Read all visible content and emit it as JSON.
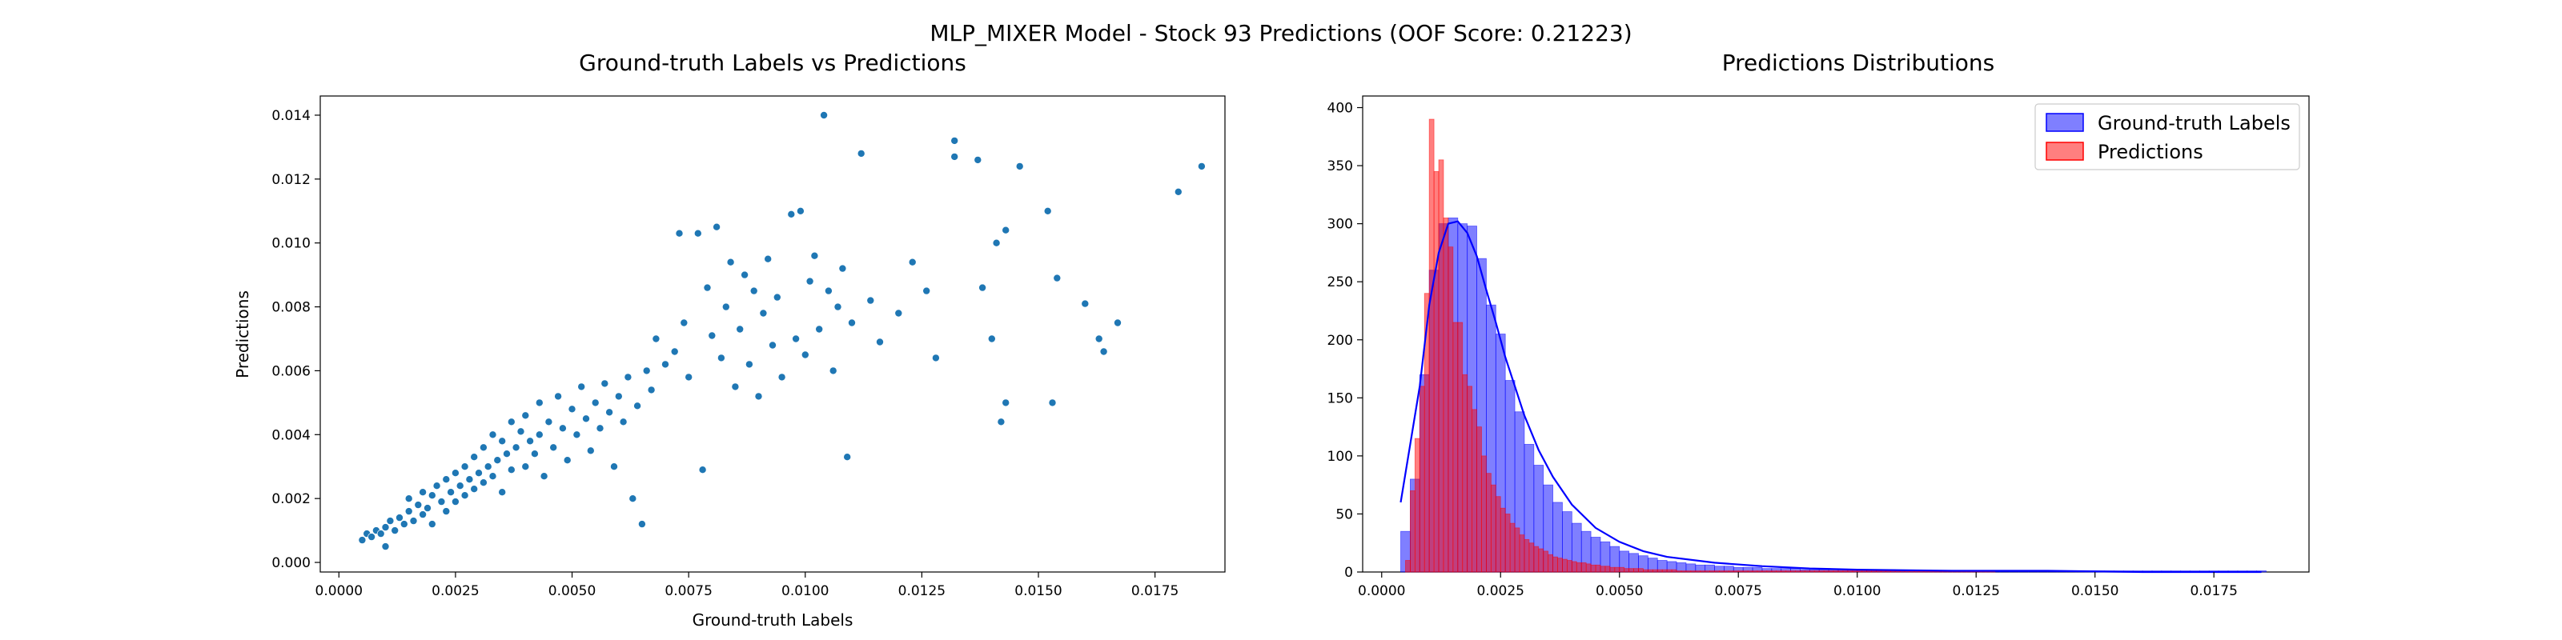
{
  "figure": {
    "suptitle": "MLP_MIXER Model - Stock 93 Predictions (OOF Score: 0.21223)"
  },
  "chart_data": [
    {
      "type": "scatter",
      "title": "Ground-truth Labels vs Predictions",
      "xlabel": "Ground-truth Labels",
      "ylabel": "Predictions",
      "xlim": [
        -0.0004,
        0.019
      ],
      "ylim": [
        -0.0003,
        0.0146
      ],
      "xticks": [
        0.0,
        0.0025,
        0.005,
        0.0075,
        0.01,
        0.0125,
        0.015,
        0.0175
      ],
      "xtick_labels": [
        "0.0000",
        "0.0025",
        "0.0050",
        "0.0075",
        "0.0100",
        "0.0125",
        "0.0150",
        "0.0175"
      ],
      "yticks": [
        0.0,
        0.002,
        0.004,
        0.006,
        0.008,
        0.01,
        0.012,
        0.014
      ],
      "ytick_labels": [
        "0.000",
        "0.002",
        "0.004",
        "0.006",
        "0.008",
        "0.010",
        "0.012",
        "0.014"
      ],
      "color": "#1f77b4",
      "grid": false,
      "points": [
        [
          0.0005,
          0.0007
        ],
        [
          0.0006,
          0.0009
        ],
        [
          0.0007,
          0.0008
        ],
        [
          0.0008,
          0.001
        ],
        [
          0.0009,
          0.0009
        ],
        [
          0.001,
          0.0011
        ],
        [
          0.001,
          0.0005
        ],
        [
          0.0011,
          0.0013
        ],
        [
          0.0012,
          0.001
        ],
        [
          0.0013,
          0.0014
        ],
        [
          0.0014,
          0.0012
        ],
        [
          0.0015,
          0.0016
        ],
        [
          0.0015,
          0.002
        ],
        [
          0.0016,
          0.0013
        ],
        [
          0.0017,
          0.0018
        ],
        [
          0.0018,
          0.0015
        ],
        [
          0.0018,
          0.0022
        ],
        [
          0.0019,
          0.0017
        ],
        [
          0.002,
          0.0021
        ],
        [
          0.002,
          0.0012
        ],
        [
          0.0021,
          0.0024
        ],
        [
          0.0022,
          0.0019
        ],
        [
          0.0023,
          0.0026
        ],
        [
          0.0023,
          0.0016
        ],
        [
          0.0024,
          0.0022
        ],
        [
          0.0025,
          0.0028
        ],
        [
          0.0025,
          0.0019
        ],
        [
          0.0026,
          0.0024
        ],
        [
          0.0027,
          0.003
        ],
        [
          0.0027,
          0.0021
        ],
        [
          0.0028,
          0.0026
        ],
        [
          0.0029,
          0.0033
        ],
        [
          0.0029,
          0.0023
        ],
        [
          0.003,
          0.0028
        ],
        [
          0.0031,
          0.0036
        ],
        [
          0.0031,
          0.0025
        ],
        [
          0.0032,
          0.003
        ],
        [
          0.0033,
          0.004
        ],
        [
          0.0033,
          0.0027
        ],
        [
          0.0034,
          0.0032
        ],
        [
          0.0035,
          0.0038
        ],
        [
          0.0035,
          0.0022
        ],
        [
          0.0036,
          0.0034
        ],
        [
          0.0037,
          0.0044
        ],
        [
          0.0037,
          0.0029
        ],
        [
          0.0038,
          0.0036
        ],
        [
          0.0039,
          0.0041
        ],
        [
          0.004,
          0.003
        ],
        [
          0.004,
          0.0046
        ],
        [
          0.0041,
          0.0038
        ],
        [
          0.0042,
          0.0034
        ],
        [
          0.0043,
          0.005
        ],
        [
          0.0043,
          0.004
        ],
        [
          0.0044,
          0.0027
        ],
        [
          0.0045,
          0.0044
        ],
        [
          0.0046,
          0.0036
        ],
        [
          0.0047,
          0.0052
        ],
        [
          0.0048,
          0.0042
        ],
        [
          0.0049,
          0.0032
        ],
        [
          0.005,
          0.0048
        ],
        [
          0.0051,
          0.004
        ],
        [
          0.0052,
          0.0055
        ],
        [
          0.0053,
          0.0045
        ],
        [
          0.0054,
          0.0035
        ],
        [
          0.0055,
          0.005
        ],
        [
          0.0056,
          0.0042
        ],
        [
          0.0057,
          0.0056
        ],
        [
          0.0058,
          0.0047
        ],
        [
          0.0059,
          0.003
        ],
        [
          0.006,
          0.0052
        ],
        [
          0.0061,
          0.0044
        ],
        [
          0.0062,
          0.0058
        ],
        [
          0.0063,
          0.002
        ],
        [
          0.0064,
          0.0049
        ],
        [
          0.0065,
          0.0012
        ],
        [
          0.0066,
          0.006
        ],
        [
          0.0067,
          0.0054
        ],
        [
          0.0068,
          0.007
        ],
        [
          0.007,
          0.0062
        ],
        [
          0.0072,
          0.0066
        ],
        [
          0.0073,
          0.0103
        ],
        [
          0.0074,
          0.0075
        ],
        [
          0.0075,
          0.0058
        ],
        [
          0.0077,
          0.0103
        ],
        [
          0.0078,
          0.0029
        ],
        [
          0.0079,
          0.0086
        ],
        [
          0.008,
          0.0071
        ],
        [
          0.0081,
          0.0105
        ],
        [
          0.0082,
          0.0064
        ],
        [
          0.0083,
          0.008
        ],
        [
          0.0084,
          0.0094
        ],
        [
          0.0085,
          0.0055
        ],
        [
          0.0086,
          0.0073
        ],
        [
          0.0087,
          0.009
        ],
        [
          0.0088,
          0.0062
        ],
        [
          0.0089,
          0.0085
        ],
        [
          0.009,
          0.0052
        ],
        [
          0.0091,
          0.0078
        ],
        [
          0.0092,
          0.0095
        ],
        [
          0.0093,
          0.0068
        ],
        [
          0.0094,
          0.0083
        ],
        [
          0.0095,
          0.0058
        ],
        [
          0.0097,
          0.0109
        ],
        [
          0.0098,
          0.007
        ],
        [
          0.0099,
          0.011
        ],
        [
          0.01,
          0.0065
        ],
        [
          0.0101,
          0.0088
        ],
        [
          0.0102,
          0.0096
        ],
        [
          0.0103,
          0.0073
        ],
        [
          0.0104,
          0.014
        ],
        [
          0.0105,
          0.0085
        ],
        [
          0.0106,
          0.006
        ],
        [
          0.0107,
          0.008
        ],
        [
          0.0108,
          0.0092
        ],
        [
          0.0109,
          0.0033
        ],
        [
          0.011,
          0.0075
        ],
        [
          0.0112,
          0.0128
        ],
        [
          0.0114,
          0.0082
        ],
        [
          0.0116,
          0.0069
        ],
        [
          0.012,
          0.0078
        ],
        [
          0.0123,
          0.0094
        ],
        [
          0.0126,
          0.0085
        ],
        [
          0.0128,
          0.0064
        ],
        [
          0.0132,
          0.0127
        ],
        [
          0.0132,
          0.0132
        ],
        [
          0.0137,
          0.0126
        ],
        [
          0.0138,
          0.0086
        ],
        [
          0.014,
          0.007
        ],
        [
          0.0141,
          0.01
        ],
        [
          0.0142,
          0.0044
        ],
        [
          0.0143,
          0.005
        ],
        [
          0.0143,
          0.0104
        ],
        [
          0.0146,
          0.0124
        ],
        [
          0.0152,
          0.011
        ],
        [
          0.0153,
          0.005
        ],
        [
          0.0154,
          0.0089
        ],
        [
          0.016,
          0.0081
        ],
        [
          0.0163,
          0.007
        ],
        [
          0.0164,
          0.0066
        ],
        [
          0.0167,
          0.0075
        ],
        [
          0.018,
          0.0116
        ],
        [
          0.0185,
          0.0124
        ]
      ]
    },
    {
      "type": "histogram",
      "title": "Predictions Distributions",
      "xlim": [
        -0.0004,
        0.0195
      ],
      "ylim": [
        0,
        410
      ],
      "xticks": [
        0.0,
        0.0025,
        0.005,
        0.0075,
        0.01,
        0.0125,
        0.015,
        0.0175
      ],
      "xtick_labels": [
        "0.0000",
        "0.0025",
        "0.0050",
        "0.0075",
        "0.0100",
        "0.0125",
        "0.0150",
        "0.0175"
      ],
      "yticks": [
        0,
        50,
        100,
        150,
        200,
        250,
        300,
        350,
        400
      ],
      "ytick_labels": [
        "0",
        "50",
        "100",
        "150",
        "200",
        "250",
        "300",
        "350",
        "400"
      ],
      "legend_position": "top-right",
      "grid": false,
      "series": [
        {
          "name": "Ground-truth Labels",
          "color": "#0000ff",
          "bin_start": 0.0004,
          "bin_width": 0.0002,
          "counts": [
            35,
            80,
            170,
            260,
            300,
            305,
            300,
            298,
            270,
            230,
            205,
            165,
            138,
            110,
            92,
            75,
            60,
            52,
            42,
            35,
            30,
            26,
            22,
            18,
            16,
            14,
            12,
            10,
            9,
            8,
            7,
            6,
            6,
            5,
            5,
            4,
            4,
            4,
            3,
            3,
            3,
            3,
            2,
            2,
            2,
            2,
            2,
            2,
            2,
            2,
            2,
            2,
            1,
            1,
            1,
            1,
            1,
            1,
            1,
            1,
            1,
            1,
            1,
            1,
            1,
            1,
            1,
            1,
            1,
            1,
            1,
            1,
            1,
            1,
            1,
            1,
            1,
            1,
            1,
            1,
            1,
            1,
            1,
            1,
            1,
            1,
            1,
            1,
            1,
            1,
            1
          ]
        },
        {
          "name": "Predictions",
          "color": "#ff0000",
          "bin_start": 0.0005,
          "bin_width": 0.0001,
          "counts": [
            10,
            70,
            115,
            160,
            240,
            390,
            345,
            355,
            305,
            280,
            215,
            215,
            170,
            160,
            140,
            125,
            100,
            85,
            75,
            65,
            55,
            50,
            42,
            38,
            32,
            28,
            25,
            22,
            20,
            18,
            15,
            13,
            12,
            11,
            10,
            9,
            8,
            8,
            7,
            6,
            6,
            5,
            5,
            4,
            4,
            4,
            3,
            3,
            3,
            3,
            2,
            2,
            2,
            2,
            2,
            2,
            2,
            1,
            1,
            1,
            1,
            1,
            1,
            1,
            1,
            1,
            1,
            1,
            1,
            1,
            1,
            1,
            1,
            1,
            1,
            1,
            1,
            1,
            1,
            1,
            1,
            1,
            1,
            1,
            1,
            1,
            1,
            1,
            1,
            1,
            1,
            1,
            1,
            1,
            1,
            1,
            1,
            1,
            1,
            1,
            1,
            1,
            1,
            1,
            1,
            1,
            1,
            1,
            1,
            1,
            1,
            1,
            1,
            1,
            1,
            1,
            1,
            1,
            1,
            1,
            1,
            1,
            1,
            1
          ]
        }
      ],
      "kde": {
        "color": "#0000ff",
        "x": [
          0.0004,
          0.0006,
          0.0008,
          0.001,
          0.0012,
          0.0014,
          0.0016,
          0.0018,
          0.002,
          0.0022,
          0.0024,
          0.0026,
          0.0028,
          0.003,
          0.0033,
          0.0036,
          0.004,
          0.0045,
          0.005,
          0.0055,
          0.006,
          0.007,
          0.008,
          0.009,
          0.01,
          0.012,
          0.014,
          0.016,
          0.0185
        ],
        "y": [
          60,
          110,
          160,
          230,
          275,
          300,
          302,
          292,
          272,
          243,
          215,
          185,
          160,
          135,
          105,
          82,
          58,
          38,
          26,
          18,
          13,
          8,
          5,
          3,
          2,
          1,
          1,
          0,
          0
        ]
      }
    }
  ]
}
